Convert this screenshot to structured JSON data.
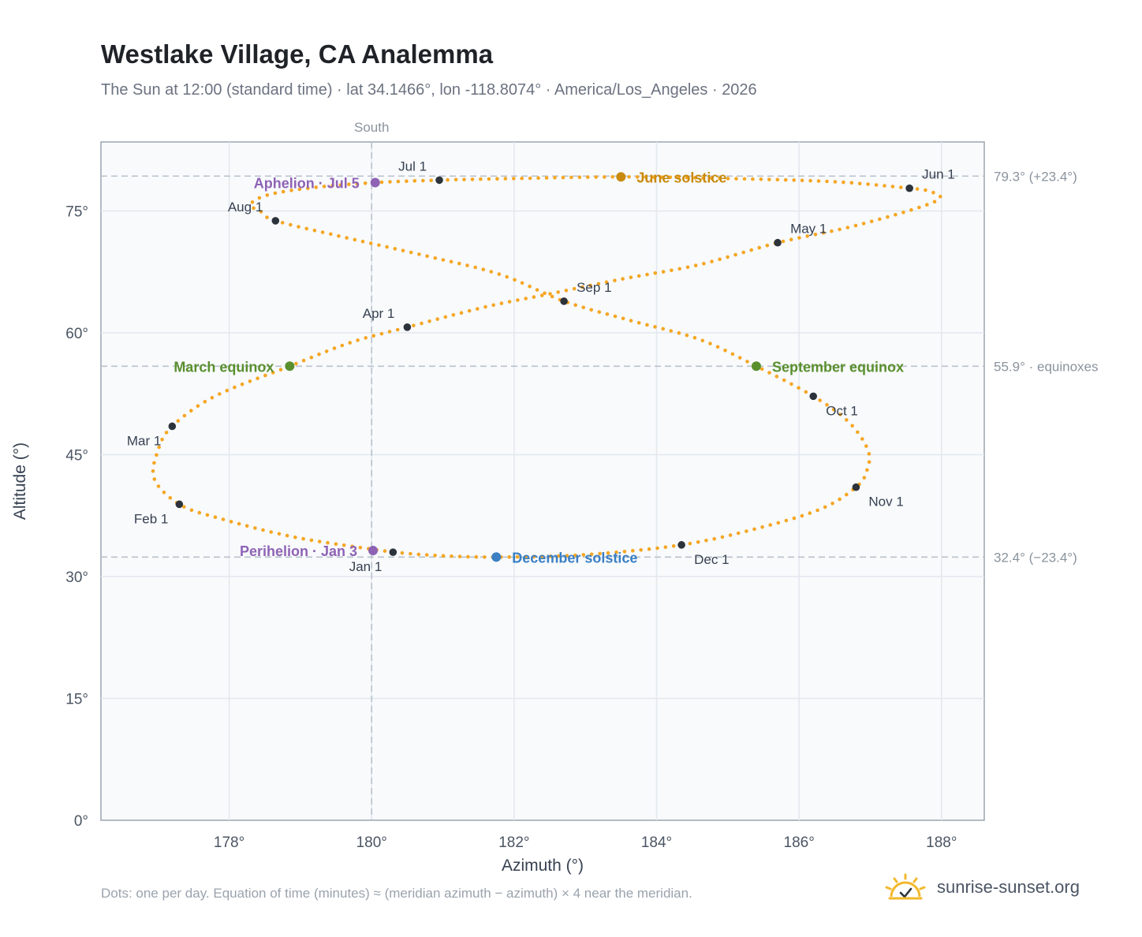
{
  "header": {
    "title": "Westlake Village, CA Analemma",
    "subtitle": "The Sun at 12:00 (standard time) · lat 34.1466°, lon -118.8074° · America/Los_Angeles · 2026"
  },
  "footer": {
    "note": "Dots: one per day. Equation of time (minutes) ≈ (meridian azimuth − azimuth) × 4 near the meridian.",
    "brand": "sunrise-sunset.org"
  },
  "colors": {
    "curve": "#f5a623",
    "month_dot": "#2d333b",
    "june_solstice": "#c98a0c",
    "december_solstice": "#3b7fc4",
    "equinox": "#5a8f2e",
    "apsis": "#8e62b5",
    "grid": "#e3e8ee",
    "ref_line": "#b8c2cc",
    "plot_bg": "#f8fafc",
    "frame": "#9aa5b1"
  },
  "chart_data": {
    "type": "scatter",
    "xlabel": "Azimuth (°)",
    "ylabel": "Altitude (°)",
    "xlim": [
      176.2,
      188.6
    ],
    "ylim": [
      0,
      83.5
    ],
    "xticks": [
      178,
      180,
      182,
      184,
      186,
      188
    ],
    "yticks": [
      0,
      15,
      30,
      45,
      60,
      75
    ],
    "grid": true,
    "meridian": {
      "azimuth": 180,
      "label": "South"
    },
    "reference_lines": [
      {
        "altitude": 79.3,
        "label": "79.3° (+23.4°)"
      },
      {
        "altitude": 55.9,
        "label": "55.9° · equinoxes"
      },
      {
        "altitude": 32.4,
        "label": "32.4° (−23.4°)"
      }
    ],
    "series_path": [
      {
        "azimuth": 180.3,
        "altitude": 33.0
      },
      {
        "azimuth": 178.95,
        "altitude": 34.8
      },
      {
        "azimuth": 177.85,
        "altitude": 37.2
      },
      {
        "azimuth": 177.3,
        "altitude": 38.9
      },
      {
        "azimuth": 176.95,
        "altitude": 42.0
      },
      {
        "azimuth": 177.0,
        "altitude": 45.5
      },
      {
        "azimuth": 177.2,
        "altitude": 48.5
      },
      {
        "azimuth": 177.8,
        "altitude": 52.2
      },
      {
        "azimuth": 178.85,
        "altitude": 55.9
      },
      {
        "azimuth": 179.7,
        "altitude": 58.8
      },
      {
        "azimuth": 180.5,
        "altitude": 60.7
      },
      {
        "azimuth": 181.6,
        "altitude": 63.2
      },
      {
        "azimuth": 182.5,
        "altitude": 64.8
      },
      {
        "azimuth": 183.5,
        "altitude": 66.6
      },
      {
        "azimuth": 184.6,
        "altitude": 68.4
      },
      {
        "azimuth": 185.7,
        "altitude": 71.1
      },
      {
        "azimuth": 186.7,
        "altitude": 73.0
      },
      {
        "azimuth": 187.6,
        "altitude": 75.2
      },
      {
        "azimuth": 187.98,
        "altitude": 76.6
      },
      {
        "azimuth": 187.8,
        "altitude": 77.5
      },
      {
        "azimuth": 187.55,
        "altitude": 77.8
      },
      {
        "azimuth": 186.5,
        "altitude": 78.6
      },
      {
        "azimuth": 185.0,
        "altitude": 79.0
      },
      {
        "azimuth": 183.5,
        "altitude": 79.2
      },
      {
        "azimuth": 182.0,
        "altitude": 79.0
      },
      {
        "azimuth": 180.95,
        "altitude": 78.8
      },
      {
        "azimuth": 180.05,
        "altitude": 78.5
      },
      {
        "azimuth": 179.2,
        "altitude": 77.9
      },
      {
        "azimuth": 178.55,
        "altitude": 77.0
      },
      {
        "azimuth": 178.3,
        "altitude": 75.8
      },
      {
        "azimuth": 178.45,
        "altitude": 74.9
      },
      {
        "azimuth": 178.65,
        "altitude": 73.8
      },
      {
        "azimuth": 179.6,
        "altitude": 71.8
      },
      {
        "azimuth": 180.7,
        "altitude": 69.6
      },
      {
        "azimuth": 181.8,
        "altitude": 67.2
      },
      {
        "azimuth": 182.7,
        "altitude": 63.9
      },
      {
        "azimuth": 183.6,
        "altitude": 61.6
      },
      {
        "azimuth": 184.6,
        "altitude": 59.2
      },
      {
        "azimuth": 185.4,
        "altitude": 55.9
      },
      {
        "azimuth": 186.2,
        "altitude": 52.2
      },
      {
        "azimuth": 186.7,
        "altitude": 49.0
      },
      {
        "azimuth": 186.97,
        "altitude": 45.5
      },
      {
        "azimuth": 186.95,
        "altitude": 43.0
      },
      {
        "azimuth": 186.8,
        "altitude": 41.0
      },
      {
        "azimuth": 186.3,
        "altitude": 38.3
      },
      {
        "azimuth": 185.4,
        "altitude": 35.9
      },
      {
        "azimuth": 184.35,
        "altitude": 33.9
      },
      {
        "azimuth": 183.0,
        "altitude": 32.7
      },
      {
        "azimuth": 181.75,
        "altitude": 32.4
      },
      {
        "azimuth": 180.9,
        "altitude": 32.6
      },
      {
        "azimuth": 180.3,
        "altitude": 33.0
      }
    ],
    "month_markers": [
      {
        "label": "Jan 1",
        "azimuth": 180.3,
        "altitude": 33.0,
        "anchor": "below-left"
      },
      {
        "label": "Feb 1",
        "azimuth": 177.3,
        "altitude": 38.9,
        "anchor": "below-left"
      },
      {
        "label": "Mar 1",
        "azimuth": 177.2,
        "altitude": 48.5,
        "anchor": "below-left"
      },
      {
        "label": "Apr 1",
        "azimuth": 180.5,
        "altitude": 60.7,
        "anchor": "above-left"
      },
      {
        "label": "May 1",
        "azimuth": 185.7,
        "altitude": 71.1,
        "anchor": "above-right"
      },
      {
        "label": "Jun 1",
        "azimuth": 187.55,
        "altitude": 77.8,
        "anchor": "above-right"
      },
      {
        "label": "Jul 1",
        "azimuth": 180.95,
        "altitude": 78.8,
        "anchor": "above-left"
      },
      {
        "label": "Aug 1",
        "azimuth": 178.65,
        "altitude": 73.8,
        "anchor": "above-left"
      },
      {
        "label": "Sep 1",
        "azimuth": 182.7,
        "altitude": 63.9,
        "anchor": "above-right"
      },
      {
        "label": "Oct 1",
        "azimuth": 186.2,
        "altitude": 52.2,
        "anchor": "below-right"
      },
      {
        "label": "Nov 1",
        "azimuth": 186.8,
        "altitude": 41.0,
        "anchor": "below-right"
      },
      {
        "label": "Dec 1",
        "azimuth": 184.35,
        "altitude": 33.9,
        "anchor": "below-right"
      }
    ],
    "events": [
      {
        "label": "June solstice",
        "azimuth": 183.5,
        "altitude": 79.2,
        "color_key": "june_solstice",
        "side": "right"
      },
      {
        "label": "December solstice",
        "azimuth": 181.75,
        "altitude": 32.4,
        "color_key": "december_solstice",
        "side": "right"
      },
      {
        "label": "March equinox",
        "azimuth": 178.85,
        "altitude": 55.9,
        "color_key": "equinox",
        "side": "left"
      },
      {
        "label": "September equinox",
        "azimuth": 185.4,
        "altitude": 55.9,
        "color_key": "equinox",
        "side": "right"
      },
      {
        "label": "Aphelion · Jul 5",
        "azimuth": 180.05,
        "altitude": 78.5,
        "color_key": "apsis",
        "side": "left"
      },
      {
        "label": "Perihelion · Jan 3",
        "azimuth": 180.02,
        "altitude": 33.2,
        "color_key": "apsis",
        "side": "left"
      }
    ]
  }
}
